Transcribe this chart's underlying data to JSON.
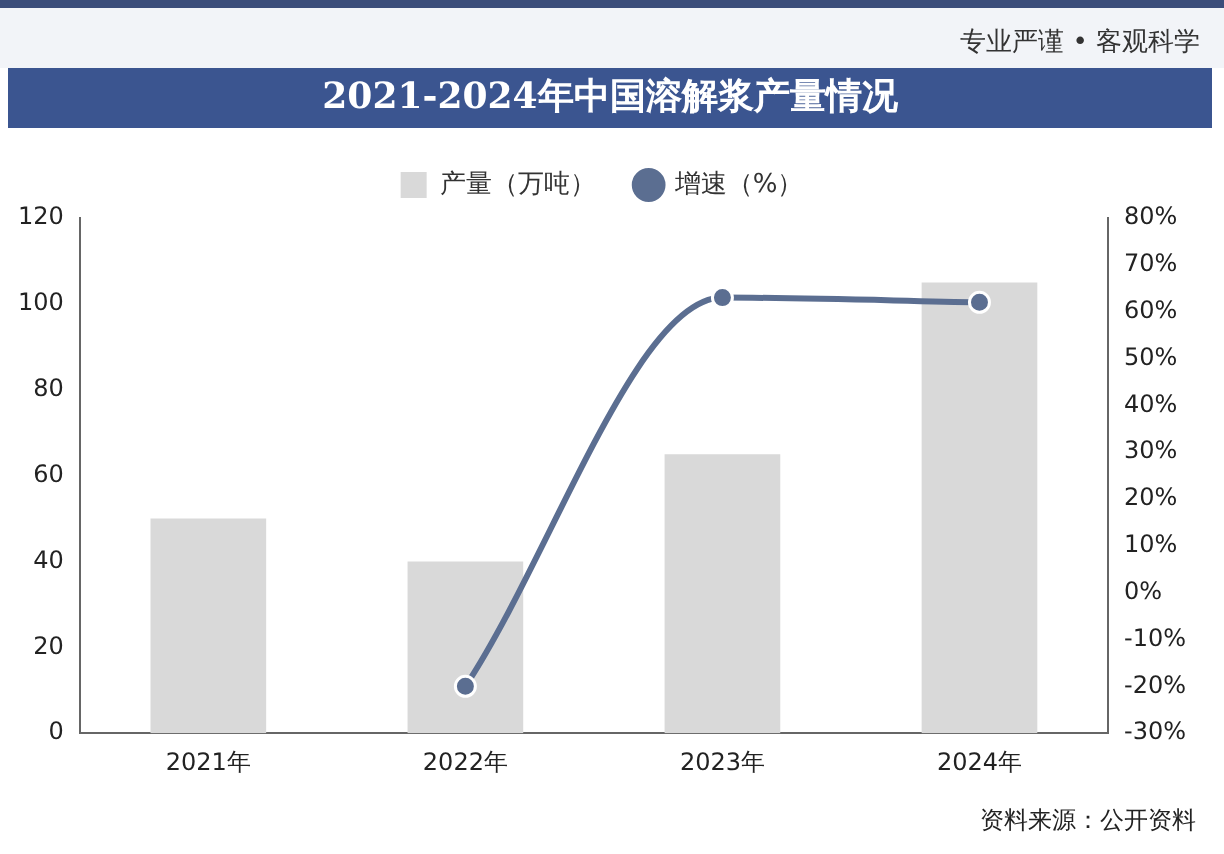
{
  "chart_data": {
    "type": "bar",
    "title": "2021-2024年中国溶解浆产量情况",
    "categories": [
      "2021年",
      "2022年",
      "2023年",
      "2024年"
    ],
    "series": [
      {
        "name": "产量（万吨）",
        "color": "#d9d9d9",
        "values": [
          50,
          40,
          65,
          105
        ]
      },
      {
        "name": "增速（%）",
        "type": "line",
        "axis": "y2",
        "color": "#5b6e91",
        "values": [
          null,
          -20,
          63,
          62
        ],
        "marker": "circle"
      }
    ],
    "ylim": [
      0,
      120
    ],
    "yticks": [
      0,
      20,
      40,
      60,
      80,
      100,
      120
    ],
    "y2lim": [
      -30,
      80
    ],
    "y2ticks": [
      {
        "value": -30,
        "label": "-30%"
      },
      {
        "value": -20,
        "label": "-20%"
      },
      {
        "value": -10,
        "label": "-10%"
      },
      {
        "value": 0,
        "label": "0%"
      },
      {
        "value": 10,
        "label": "10%"
      },
      {
        "value": 20,
        "label": "20%"
      },
      {
        "value": 30,
        "label": "30%"
      },
      {
        "value": 40,
        "label": "40%"
      },
      {
        "value": 50,
        "label": "50%"
      },
      {
        "value": 60,
        "label": "60%"
      },
      {
        "value": 70,
        "label": "70%"
      },
      {
        "value": 80,
        "label": "80%"
      }
    ],
    "legend": "top",
    "grid": false,
    "annotations": [
      "专业严谨 • 客观科学",
      "资料来源：公开资料"
    ]
  }
}
